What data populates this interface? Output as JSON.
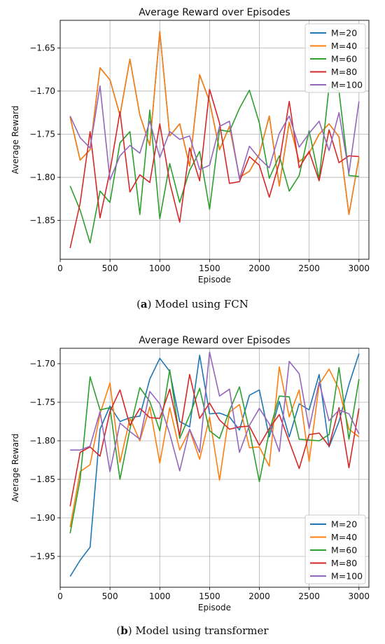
{
  "chart_data": [
    {
      "type": "line",
      "title": "Average Reward over Episodes",
      "xlabel": "Episode",
      "ylabel": "Average Reward",
      "xlim": [
        0,
        3100
      ],
      "ylim": [
        -1.895,
        -1.618
      ],
      "xticks": [
        0,
        500,
        1000,
        1500,
        2000,
        2500,
        3000
      ],
      "yticks": [
        -1.85,
        -1.8,
        -1.75,
        -1.7,
        -1.65
      ],
      "ytick_labels": [
        "−1.85",
        "−1.80",
        "−1.75",
        "−1.70",
        "−1.65"
      ],
      "grid": true,
      "legend_position": "upper right",
      "x": [
        100,
        200,
        300,
        400,
        500,
        600,
        700,
        800,
        900,
        1000,
        1100,
        1200,
        1300,
        1400,
        1500,
        1600,
        1700,
        1800,
        1900,
        2000,
        2100,
        2200,
        2300,
        2400,
        2500,
        2600,
        2700,
        2800,
        2900,
        3000
      ],
      "series": [
        {
          "name": "M=20",
          "color": "#1f77b4",
          "values": [
            -1.73,
            -1.78,
            -1.768,
            -1.673,
            -1.687,
            -1.728,
            -1.663,
            -1.728,
            -1.763,
            -1.631,
            -1.752,
            -1.738,
            -1.787,
            -1.681,
            -1.712,
            -1.768,
            -1.741,
            -1.8,
            -1.793,
            -1.773,
            -1.729,
            -1.81,
            -1.736,
            -1.782,
            -1.772,
            -1.75,
            -1.738,
            -1.753,
            -1.843,
            -1.777
          ]
        },
        {
          "name": "M=40",
          "color": "#ff7f0e",
          "values": [
            -1.73,
            -1.78,
            -1.768,
            -1.673,
            -1.687,
            -1.728,
            -1.663,
            -1.728,
            -1.763,
            -1.631,
            -1.752,
            -1.738,
            -1.787,
            -1.681,
            -1.712,
            -1.768,
            -1.741,
            -1.8,
            -1.793,
            -1.773,
            -1.729,
            -1.81,
            -1.736,
            -1.782,
            -1.772,
            -1.75,
            -1.738,
            -1.753,
            -1.843,
            -1.777
          ]
        },
        {
          "name": "M=60",
          "color": "#2ca02c",
          "values": [
            -1.81,
            -1.838,
            -1.876,
            -1.816,
            -1.829,
            -1.76,
            -1.747,
            -1.843,
            -1.722,
            -1.848,
            -1.784,
            -1.829,
            -1.792,
            -1.77,
            -1.837,
            -1.745,
            -1.747,
            -1.72,
            -1.699,
            -1.737,
            -1.801,
            -1.775,
            -1.816,
            -1.798,
            -1.746,
            -1.802,
            -1.695,
            -1.7,
            -1.798,
            -1.799
          ]
        },
        {
          "name": "M=80",
          "color": "#d62728",
          "values": [
            -1.882,
            -1.83,
            -1.747,
            -1.847,
            -1.793,
            -1.724,
            -1.817,
            -1.797,
            -1.806,
            -1.738,
            -1.806,
            -1.852,
            -1.766,
            -1.804,
            -1.698,
            -1.737,
            -1.807,
            -1.805,
            -1.776,
            -1.786,
            -1.823,
            -1.783,
            -1.712,
            -1.789,
            -1.77,
            -1.804,
            -1.745,
            -1.783,
            -1.775,
            -1.776
          ]
        },
        {
          "name": "M=100",
          "color": "#9467bd",
          "values": [
            -1.729,
            -1.754,
            -1.766,
            -1.694,
            -1.803,
            -1.775,
            -1.763,
            -1.772,
            -1.735,
            -1.777,
            -1.747,
            -1.756,
            -1.752,
            -1.791,
            -1.786,
            -1.741,
            -1.735,
            -1.802,
            -1.764,
            -1.778,
            -1.789,
            -1.749,
            -1.729,
            -1.765,
            -1.749,
            -1.735,
            -1.769,
            -1.725,
            -1.795,
            -1.712
          ]
        }
      ]
    },
    {
      "type": "line",
      "title": "Average Reward over Episodes",
      "xlabel": "Episode",
      "ylabel": "Average Reward",
      "xlim": [
        0,
        3100
      ],
      "ylim": [
        -1.99,
        -1.68
      ],
      "xticks": [
        0,
        500,
        1000,
        1500,
        2000,
        2500,
        3000
      ],
      "yticks": [
        -1.95,
        -1.9,
        -1.85,
        -1.8,
        -1.75,
        -1.7
      ],
      "ytick_labels": [
        "−1.95",
        "−1.90",
        "−1.85",
        "−1.80",
        "−1.75",
        "−1.70"
      ],
      "grid": true,
      "legend_position": "lower right",
      "x": [
        100,
        200,
        300,
        400,
        500,
        600,
        700,
        800,
        900,
        1000,
        1100,
        1200,
        1300,
        1400,
        1500,
        1600,
        1700,
        1800,
        1900,
        2000,
        2100,
        2200,
        2300,
        2400,
        2500,
        2600,
        2700,
        2800,
        2900,
        3000
      ],
      "series": [
        {
          "name": "M=20",
          "color": "#1f77b4",
          "values": [
            -1.976,
            -1.955,
            -1.938,
            -1.785,
            -1.755,
            -1.775,
            -1.77,
            -1.768,
            -1.72,
            -1.693,
            -1.71,
            -1.775,
            -1.782,
            -1.689,
            -1.765,
            -1.764,
            -1.769,
            -1.786,
            -1.741,
            -1.734,
            -1.795,
            -1.749,
            -1.795,
            -1.752,
            -1.76,
            -1.714,
            -1.808,
            -1.775,
            -1.727,
            -1.687
          ]
        },
        {
          "name": "M=40",
          "color": "#ff7f0e",
          "values": [
            -1.912,
            -1.84,
            -1.831,
            -1.765,
            -1.725,
            -1.828,
            -1.771,
            -1.8,
            -1.756,
            -1.829,
            -1.757,
            -1.812,
            -1.786,
            -1.824,
            -1.769,
            -1.851,
            -1.763,
            -1.753,
            -1.809,
            -1.808,
            -1.833,
            -1.704,
            -1.769,
            -1.734,
            -1.827,
            -1.727,
            -1.707,
            -1.733,
            -1.785,
            -1.795
          ]
        },
        {
          "name": "M=60",
          "color": "#2ca02c",
          "values": [
            -1.92,
            -1.85,
            -1.717,
            -1.76,
            -1.757,
            -1.85,
            -1.785,
            -1.731,
            -1.749,
            -1.787,
            -1.708,
            -1.797,
            -1.767,
            -1.732,
            -1.787,
            -1.797,
            -1.761,
            -1.73,
            -1.787,
            -1.853,
            -1.788,
            -1.742,
            -1.743,
            -1.798,
            -1.799,
            -1.8,
            -1.792,
            -1.705,
            -1.798,
            -1.72
          ]
        },
        {
          "name": "M=80",
          "color": "#d62728",
          "values": [
            -1.885,
            -1.815,
            -1.808,
            -1.82,
            -1.762,
            -1.734,
            -1.78,
            -1.758,
            -1.77,
            -1.771,
            -1.733,
            -1.793,
            -1.714,
            -1.771,
            -1.751,
            -1.773,
            -1.785,
            -1.782,
            -1.781,
            -1.806,
            -1.784,
            -1.766,
            -1.801,
            -1.836,
            -1.792,
            -1.79,
            -1.807,
            -1.757,
            -1.835,
            -1.758
          ]
        },
        {
          "name": "M=100",
          "color": "#9467bd",
          "values": [
            -1.812,
            -1.812,
            -1.807,
            -1.762,
            -1.84,
            -1.777,
            -1.788,
            -1.798,
            -1.736,
            -1.752,
            -1.791,
            -1.839,
            -1.785,
            -1.815,
            -1.685,
            -1.742,
            -1.733,
            -1.815,
            -1.78,
            -1.758,
            -1.778,
            -1.814,
            -1.697,
            -1.713,
            -1.784,
            -1.724,
            -1.774,
            -1.76,
            -1.765,
            -1.791
          ]
        }
      ]
    }
  ],
  "captions": {
    "a_letter": "a",
    "a_text": "Model using FCN",
    "b_letter": "b",
    "b_text": "Model using transformer"
  }
}
